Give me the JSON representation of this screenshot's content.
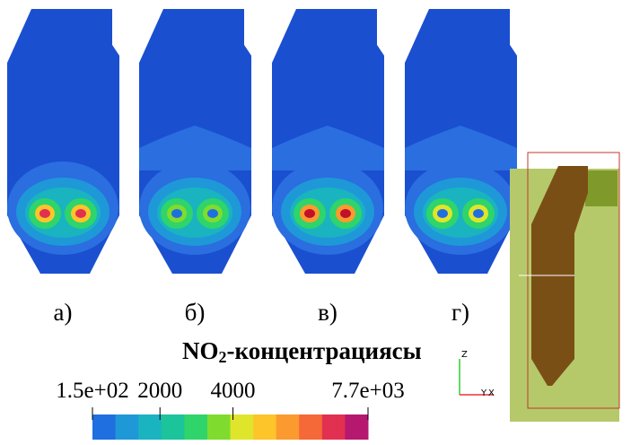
{
  "panels": [
    {
      "label": "а)"
    },
    {
      "label": "б)"
    },
    {
      "label": "в)"
    },
    {
      "label": "г)"
    }
  ],
  "colorbar": {
    "title": {
      "main": "NO",
      "sub": "2",
      "rest": "-концентрациясы"
    },
    "range": [
      150,
      7700
    ],
    "ticks": [
      {
        "value": 150,
        "label": "1.5e+02"
      },
      {
        "value": 2000,
        "label": "2000"
      },
      {
        "value": 4000,
        "label": "4000"
      },
      {
        "value": 7700,
        "label": "7.7e+03"
      }
    ],
    "colors": [
      "#1f6fe0",
      "#1f98d8",
      "#19b4c0",
      "#1bc49a",
      "#2fd46a",
      "#7fdc2e",
      "#dfe52a",
      "#fdc52a",
      "#fb9a2e",
      "#f56838",
      "#e23050",
      "#b5186e"
    ]
  },
  "axes": {
    "z": "Z",
    "y": "Y",
    "x": "X"
  }
}
